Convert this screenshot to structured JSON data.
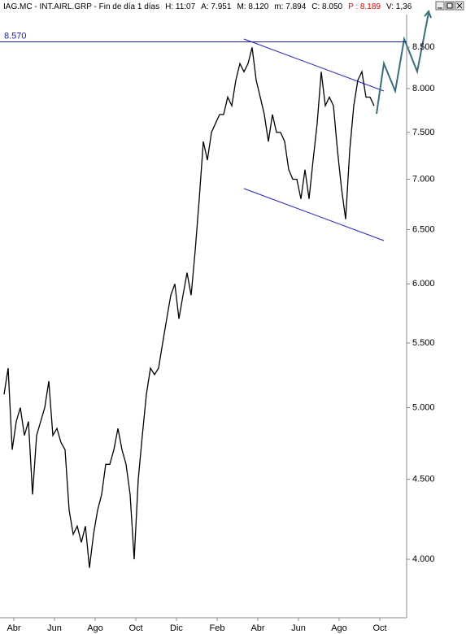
{
  "chart_data": {
    "type": "line",
    "title": "IAG.MC - INT.AIRL.GRP - Fin de día 1 días",
    "info": [
      "H: 11:07",
      "A: 7.951",
      "M: 8.120",
      "m: 7.894",
      "C: 8.050",
      "P : 8.189",
      "V: 1,36"
    ],
    "info_highlight": 5,
    "info_highlight_color": "#e00000",
    "color": "#000000",
    "log_scale": true,
    "x": [
      -0.48,
      -0.28,
      -0.08,
      0.12,
      0.32,
      0.52,
      0.72,
      0.92,
      1.12,
      1.32,
      1.52,
      1.72,
      1.92,
      2.12,
      2.32,
      2.52,
      2.72,
      2.92,
      3.12,
      3.32,
      3.52,
      3.72,
      3.92,
      4.12,
      4.32,
      4.52,
      4.72,
      4.92,
      5.12,
      5.32,
      5.52,
      5.72,
      5.92,
      6.12,
      6.32,
      6.52,
      6.72,
      6.92,
      7.12,
      7.32,
      7.52,
      7.72,
      7.92,
      8.12,
      8.32,
      8.52,
      8.72,
      8.92,
      9.12,
      9.32,
      9.52,
      9.72,
      9.92,
      10.12,
      10.32,
      10.52,
      10.72,
      10.92,
      11.12,
      11.32,
      11.52,
      11.72,
      11.92,
      12.12,
      12.32,
      12.52,
      12.72,
      12.92,
      13.12,
      13.32,
      13.52,
      13.72,
      13.92,
      14.12,
      14.32,
      14.52,
      14.72,
      14.92,
      15.12,
      15.32,
      15.52,
      15.72,
      15.92,
      16.12,
      16.32,
      16.52,
      16.72,
      16.92,
      17.12,
      17.32,
      17.52,
      17.72
    ],
    "values": [
      5.1,
      5.3,
      4.7,
      4.9,
      5.0,
      4.8,
      4.9,
      4.4,
      4.8,
      4.9,
      5.0,
      5.2,
      4.8,
      4.85,
      4.75,
      4.7,
      4.3,
      4.15,
      4.2,
      4.1,
      4.2,
      3.95,
      4.15,
      4.3,
      4.4,
      4.6,
      4.6,
      4.7,
      4.85,
      4.7,
      4.6,
      4.4,
      4.0,
      4.5,
      4.8,
      5.1,
      5.3,
      5.25,
      5.3,
      5.5,
      5.7,
      5.9,
      6.0,
      5.7,
      5.9,
      6.1,
      5.9,
      6.3,
      6.8,
      7.4,
      7.2,
      7.5,
      7.6,
      7.7,
      7.7,
      7.9,
      7.8,
      8.1,
      8.3,
      8.2,
      8.3,
      8.5,
      8.1,
      7.9,
      7.7,
      7.4,
      7.7,
      7.5,
      7.5,
      7.4,
      7.1,
      7.0,
      7.0,
      6.8,
      7.1,
      6.8,
      7.2,
      7.6,
      8.2,
      7.8,
      7.9,
      7.8,
      7.3,
      6.9,
      6.6,
      7.3,
      7.8,
      8.1,
      8.2,
      7.9,
      7.9,
      7.8
    ],
    "xlim": [
      -0.48,
      19.32
    ],
    "xticks": [
      {
        "value": 0,
        "label": "Abr"
      },
      {
        "value": 2,
        "label": "Jun"
      },
      {
        "value": 4,
        "label": "Ago"
      },
      {
        "value": 6,
        "label": "Oct"
      },
      {
        "value": 8,
        "label": "Dic"
      },
      {
        "value": 10,
        "label": "Feb"
      },
      {
        "value": 12,
        "label": "Abr"
      },
      {
        "value": 14,
        "label": "Jun"
      },
      {
        "value": 16,
        "label": "Ago"
      },
      {
        "value": 18,
        "label": "Oct"
      }
    ],
    "ylim": [
      3.67,
      8.92
    ],
    "yticks": [
      {
        "value": 4,
        "label": "4.000"
      },
      {
        "value": 4.5,
        "label": "4.500"
      },
      {
        "value": 5,
        "label": "5.000"
      },
      {
        "value": 5.5,
        "label": "5.500"
      },
      {
        "value": 6,
        "label": "6.000"
      },
      {
        "value": 6.5,
        "label": "6.500"
      },
      {
        "value": 7,
        "label": "7.000"
      },
      {
        "value": 7.5,
        "label": "7.500"
      },
      {
        "value": 8,
        "label": "8.000"
      },
      {
        "value": 8.5,
        "label": "8.500"
      }
    ],
    "reference_line": {
      "value": 8.57,
      "label": "8.570",
      "color": "#1a1aa0"
    }
  }
}
